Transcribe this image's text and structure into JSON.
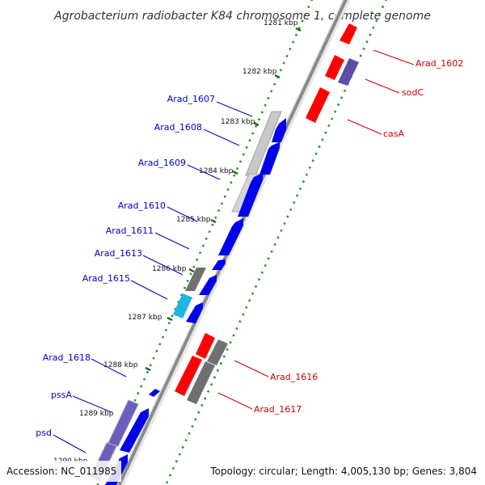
{
  "title": "Agrobacterium radiobacter K84 chromosome 1, complete genome",
  "footer": {
    "accession": "Accession: NC_011985",
    "topology": "Topology: circular; Length: 4,005,130 bp; Genes: 3,804"
  },
  "ticks": [
    "1281 kbp",
    "1282 kbp",
    "1283 kbp",
    "1284 kbp",
    "1285 kbp",
    "1286 kbp",
    "1287 kbp",
    "1288 kbp",
    "1289 kbp",
    "1290 kbp"
  ],
  "genes_left": [
    "Arad_1607",
    "Arad_1608",
    "Arad_1609",
    "Arad_1610",
    "Arad_1611",
    "Arad_1613",
    "Arad_1615",
    "Arad_1618",
    "pssA",
    "psd"
  ],
  "genes_right": [
    "Arad_1602",
    "sodC",
    "casA",
    "Arad_1616",
    "Arad_1617"
  ],
  "colors": {
    "forward": "#0000ee",
    "reverse": "#ff0000",
    "grey": "#6e6e6e",
    "light_grey": "#cfcfcf",
    "purple": "#6b5fb8",
    "cyan": "#1eb4e6",
    "tick_green": "#2e8b2e",
    "label_blue": "#0000cc",
    "label_red": "#cc0000"
  }
}
